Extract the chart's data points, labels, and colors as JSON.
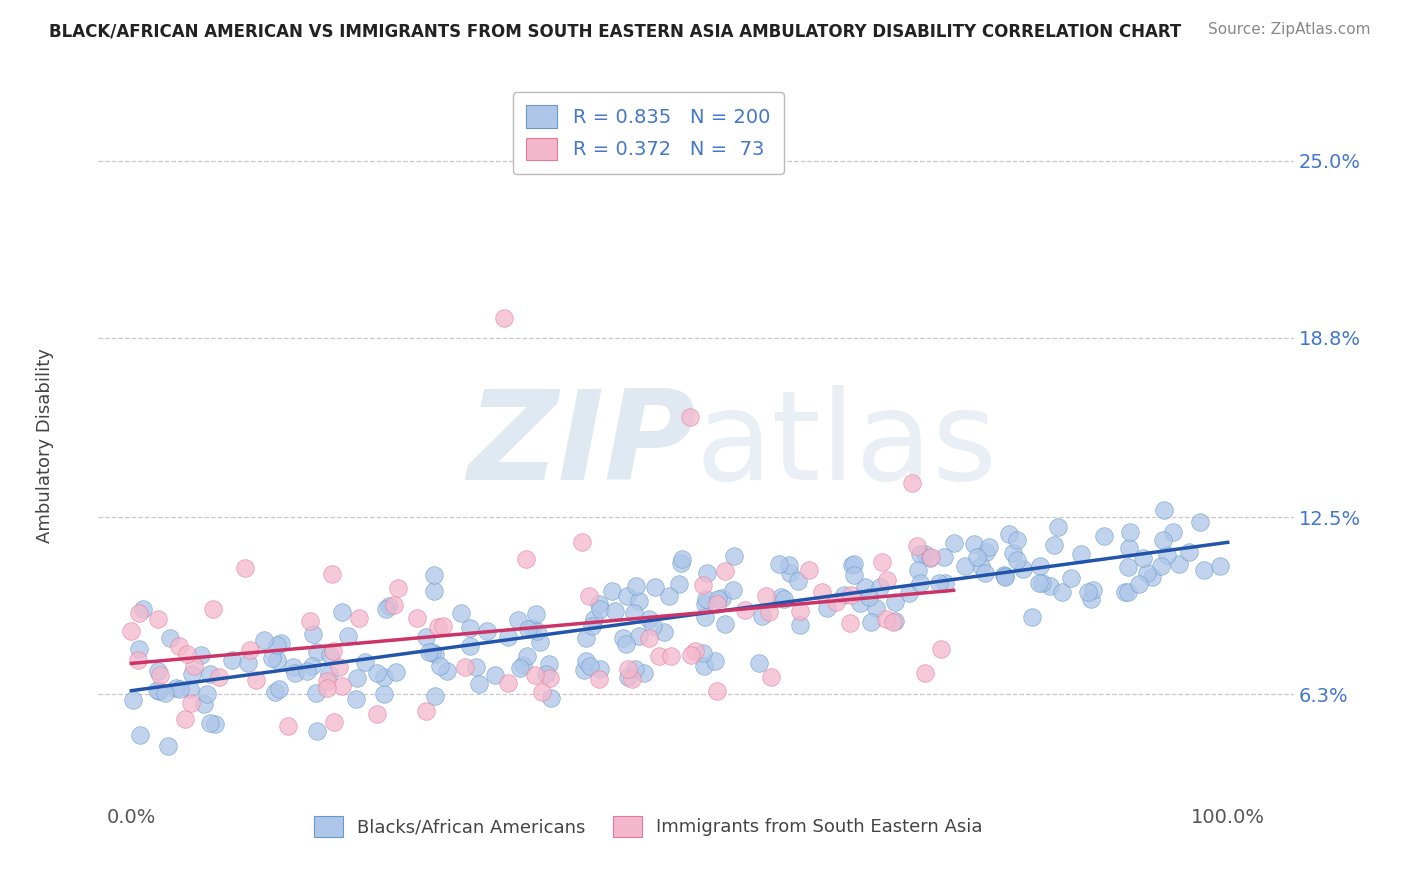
{
  "title": "BLACK/AFRICAN AMERICAN VS IMMIGRANTS FROM SOUTH EASTERN ASIA AMBULATORY DISABILITY CORRELATION CHART",
  "source": "Source: ZipAtlas.com",
  "ylabel": "Ambulatory Disability",
  "watermark_zip": "ZIP",
  "watermark_atlas": "atlas",
  "legend_r": [
    0.835,
    0.372
  ],
  "legend_n": [
    200,
    73
  ],
  "legend_labels": [
    "Blacks/African Americans",
    "Immigrants from South Eastern Asia"
  ],
  "blue_color": "#aec6e8",
  "pink_color": "#f4b8cc",
  "blue_edge_color": "#6699cc",
  "pink_edge_color": "#e87799",
  "blue_line_color": "#2255aa",
  "pink_line_color": "#cc3366",
  "ytick_labels": [
    "6.3%",
    "12.5%",
    "18.8%",
    "25.0%"
  ],
  "ytick_values": [
    0.063,
    0.125,
    0.188,
    0.25
  ],
  "xlim": [
    -0.03,
    1.06
  ],
  "ylim": [
    0.025,
    0.275
  ],
  "n_blue": 200,
  "n_pink": 73,
  "R_blue": 0.835,
  "R_pink": 0.372,
  "background_color": "#ffffff",
  "grid_color": "#bbbbbb",
  "title_color": "#222222",
  "source_color": "#888888",
  "ylabel_color": "#444444",
  "tick_label_color": "#555555",
  "right_label_color": "#4477cc"
}
